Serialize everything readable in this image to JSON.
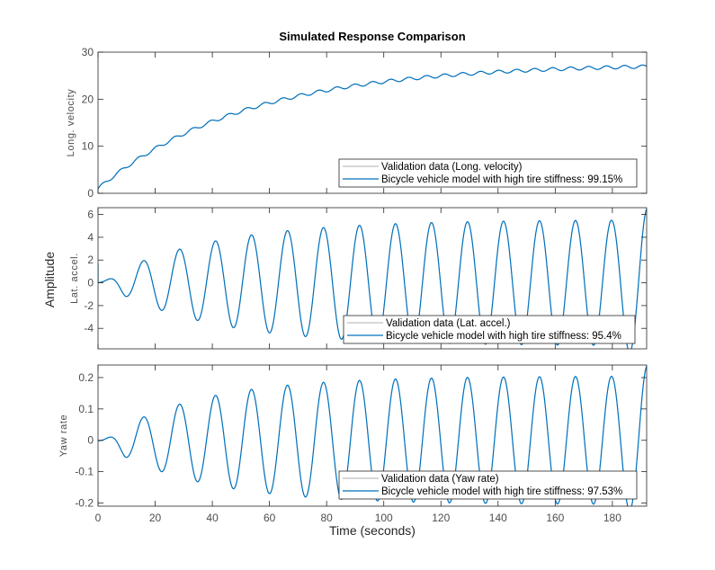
{
  "figure": {
    "title": "Simulated Response Comparison",
    "shared_ylabel": "Amplitude",
    "shared_xlabel": "Time (seconds)"
  },
  "colors": {
    "model_line": "#0072BD",
    "validation_line": "#BFBFBF",
    "axes": "#262626",
    "tick_text": "#4d4d4d"
  },
  "chart_data": [
    {
      "type": "line",
      "id": "long-velocity",
      "ylabel": "Long. velocity",
      "xlim": [
        0,
        192
      ],
      "ylim": [
        0,
        30
      ],
      "xticks": [
        0,
        20,
        40,
        60,
        80,
        100,
        120,
        140,
        160,
        180
      ],
      "yticks": [
        0,
        10,
        20,
        30
      ],
      "ytick_labels": [
        "0",
        "10",
        "20",
        "30"
      ],
      "show_xtick_labels": false,
      "legend": {
        "location": "bottom-right",
        "entries": [
          "Validation data (Long. velocity)",
          "Bicycle vehicle model with high tire stiffness: 99.15%"
        ]
      },
      "model": {
        "kind": "velocity",
        "v_final": 27.6,
        "tau": 52,
        "v0": 1.0,
        "ripple": 0.35,
        "period": 6.3
      },
      "series": [
        {
          "name": "Validation data (Long. velocity)",
          "role": "validation"
        },
        {
          "name": "Bicycle vehicle model with high tire stiffness: 99.15%",
          "role": "model"
        }
      ]
    },
    {
      "type": "line",
      "id": "lat-accel",
      "ylabel": "Lat. accel.",
      "xlim": [
        0,
        192
      ],
      "ylim": [
        -5.8,
        6.6
      ],
      "xticks": [
        0,
        20,
        40,
        60,
        80,
        100,
        120,
        140,
        160,
        180
      ],
      "yticks": [
        -4,
        -2,
        0,
        2,
        4,
        6
      ],
      "ytick_labels": [
        "-4",
        "-2",
        "0",
        "2",
        "4",
        "6"
      ],
      "show_xtick_labels": false,
      "legend": {
        "location": "bottom-right",
        "entries": [
          "Validation data (Lat. accel.)",
          "Bicycle vehicle model with high tire stiffness: 95.4%"
        ]
      },
      "model": {
        "kind": "oscillation",
        "amp_final": 5.55,
        "amp_last": 6.6,
        "growth_tau": 38,
        "period": 12.6,
        "phase_peak": 3.3,
        "offset": 0.1,
        "initial_spike": 1.7
      },
      "series": [
        {
          "name": "Validation data (Lat. accel.)",
          "role": "validation"
        },
        {
          "name": "Bicycle vehicle model with high tire stiffness: 95.4%",
          "role": "model"
        }
      ]
    },
    {
      "type": "line",
      "id": "yaw-rate",
      "ylabel": "Yaw rate",
      "xlabel": "Time (seconds)",
      "xlim": [
        0,
        192
      ],
      "ylim": [
        -0.21,
        0.24
      ],
      "xticks": [
        0,
        20,
        40,
        60,
        80,
        100,
        120,
        140,
        160,
        180
      ],
      "xtick_labels": [
        "0",
        "20",
        "40",
        "60",
        "80",
        "100",
        "120",
        "140",
        "160",
        "180"
      ],
      "yticks": [
        -0.2,
        -0.1,
        0,
        0.1,
        0.2
      ],
      "ytick_labels": [
        "-0.2",
        "-0.1",
        "0",
        "0.1",
        "0.2"
      ],
      "show_xtick_labels": true,
      "legend": {
        "location": "bottom-right",
        "entries": [
          "Validation data (Yaw rate)",
          "Bicycle vehicle model with high tire stiffness: 97.53%"
        ]
      },
      "model": {
        "kind": "oscillation",
        "amp_final": 0.205,
        "amp_last": 0.24,
        "growth_tau": 34,
        "period": 12.6,
        "phase_peak": 3.3,
        "offset": -0.005,
        "initial_spike": 0
      },
      "series": [
        {
          "name": "Validation data (Yaw rate)",
          "role": "validation"
        },
        {
          "name": "Bicycle vehicle model with high tire stiffness: 97.53%",
          "role": "model"
        }
      ]
    }
  ]
}
